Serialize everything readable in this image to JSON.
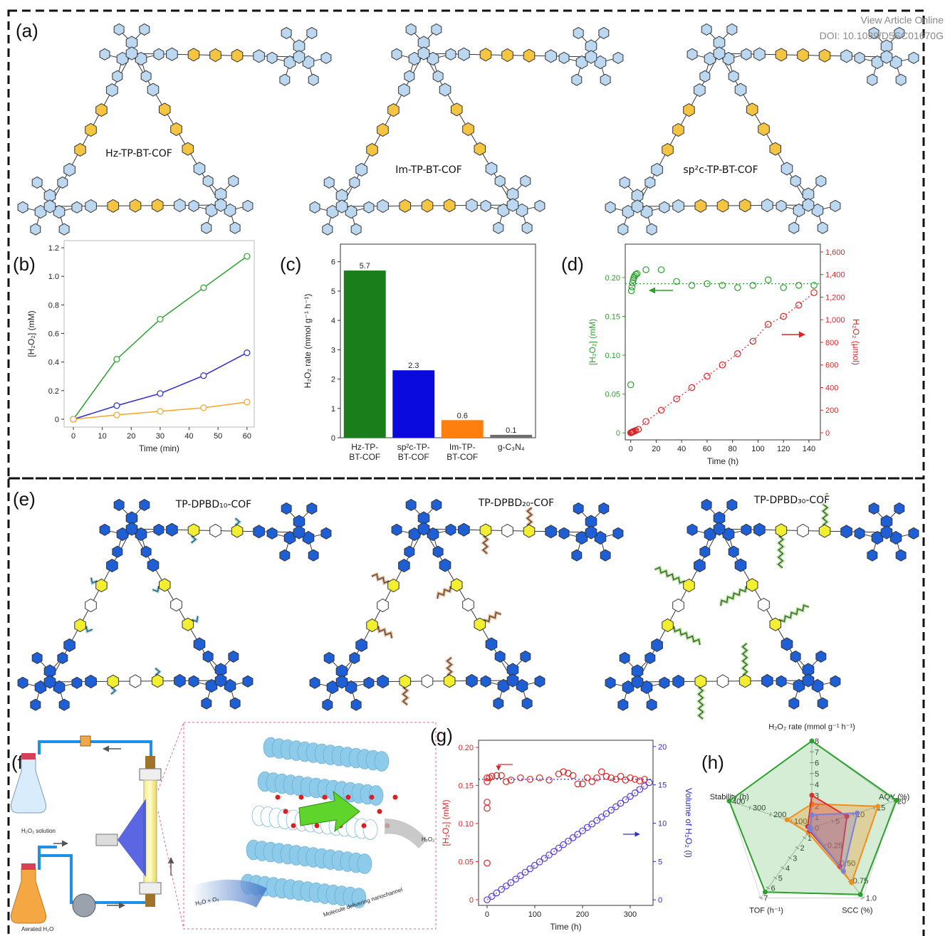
{
  "header": {
    "view": "View Article Online",
    "doi": "DOI: 10.1039/D5SC01670G"
  },
  "panels": {
    "a": "(a)",
    "e": "(e)",
    "f": "(f)"
  },
  "structures": {
    "a": [
      "Hz-TP-BT-COF",
      "Im-TP-BT-COF",
      "sp²c-TP-BT-COF"
    ],
    "e": [
      "TP-DPBD₁₀-COF",
      "TP-DPBD₂₀-COF",
      "TP-DPBD₃₀-COF"
    ]
  },
  "flow_diagram": {
    "solution": "H₂O₂ solution",
    "aerated": "Aerated H₂O",
    "input": "H₂O + O₂",
    "channel": "Molecule delivering nanochannel",
    "output": "H₂O₂"
  },
  "chart_data": [
    {
      "type": "line",
      "label": "(b)",
      "xlabel": "Time (min)",
      "ylabel": "[H₂O₂] (mM)",
      "x": [
        0,
        15,
        30,
        45,
        60
      ],
      "series": [
        {
          "color": "#2ca02c",
          "values": [
            0,
            0.42,
            0.7,
            0.92,
            1.14
          ]
        },
        {
          "color": "#2b2bd0",
          "values": [
            0,
            0.095,
            0.18,
            0.305,
            0.465
          ]
        },
        {
          "color": "#f5a623",
          "values": [
            0,
            0.03,
            0.055,
            0.08,
            0.12
          ]
        }
      ],
      "xlim": [
        -3.2,
        62.5
      ],
      "xticks": [
        0,
        10,
        20,
        30,
        40,
        50,
        60
      ],
      "ylim": [
        -0.055,
        1.25
      ],
      "yticks": [
        0,
        0.2,
        0.4,
        0.6,
        0.8,
        {
          "value": 1,
          "label": "1.0"
        },
        1.2
      ]
    },
    {
      "type": "bar",
      "label": "(c)",
      "ylabel": "H₂O₂ rate (mmol g⁻¹ h⁻¹)",
      "categories": [
        "Hz-TP-BT-COF",
        "sp²c-TP-BT-COF",
        "Im-TP-BT-COF",
        "g-C₃N₄"
      ],
      "values": [
        5.7,
        2.3,
        0.6,
        0.1
      ],
      "colors": [
        "#1a7f1a",
        "#0a0adf",
        "#ff7f0e",
        "#6e6e6e"
      ],
      "ylim": [
        0,
        6.6
      ],
      "yticks": [
        0,
        1,
        2,
        3,
        4,
        5,
        6
      ]
    },
    {
      "type": "scatter",
      "label": "(d)",
      "xlabel": "Time (h)",
      "ylabel": "[H₂O₂] (mM)",
      "y2label": "H₂O₂ (µmol)",
      "ycolor": "#2ca02c",
      "y2color": "#d62728",
      "series": [
        {
          "color": "#2ca02c",
          "connect": false,
          "x": [
            0,
            0.5,
            1,
            1.5,
            2,
            2.5,
            3,
            4,
            5,
            12,
            24,
            36,
            48,
            60,
            72,
            84,
            96,
            108,
            120,
            132,
            144
          ],
          "values": [
            0.062,
            0.183,
            0.188,
            0.193,
            0.197,
            0.2,
            0.202,
            0.204,
            0.205,
            0.21,
            0.21,
            0.195,
            0.19,
            0.192,
            0.19,
            0.187,
            0.19,
            0.197,
            0.187,
            0.19,
            0.19
          ]
        },
        {
          "color": "#d62728",
          "axis": "y2",
          "connect": true,
          "x": [
            0,
            0.5,
            1,
            1.5,
            2,
            3,
            4,
            6,
            12,
            24,
            36,
            48,
            60,
            72,
            84,
            96,
            108,
            120,
            132,
            144
          ],
          "values": [
            0,
            2,
            5,
            8,
            10,
            15,
            20,
            30,
            100,
            200,
            300,
            400,
            500,
            600,
            700,
            810,
            960,
            1030,
            1130,
            1240
          ]
        }
      ],
      "reference_line": {
        "value": 0.192,
        "color": "#2ca02c"
      },
      "xlim": [
        -4.3,
        149
      ],
      "xticks": [
        0,
        20,
        40,
        60,
        80,
        100,
        120,
        140
      ],
      "ylim": [
        -0.009,
        0.243
      ],
      "yticks": [
        0,
        0.05,
        {
          "value": 0.1,
          "label": "0.10"
        },
        0.15,
        {
          "value": 0.2,
          "label": "0.20"
        }
      ],
      "y2lim": [
        -63,
        1669
      ],
      "y2ticks": [
        0,
        200,
        400,
        600,
        800,
        {
          "value": 1000,
          "label": "1,000"
        },
        {
          "value": 1200,
          "label": "1,200"
        },
        {
          "value": 1400,
          "label": "1,400"
        },
        {
          "value": 1600,
          "label": "1,600"
        }
      ]
    },
    {
      "type": "scatter",
      "label": "(g)",
      "xlabel": "Time (h)",
      "ylabel": "[H₂O₂] (mM)",
      "y2label": "Volume of H₂O₂ (l)",
      "ycolor": "#d62728",
      "y2color": "#2b2bd0",
      "series": [
        {
          "color": "#d62728",
          "connect": false,
          "x": [
            0,
            0,
            0,
            0,
            0,
            5,
            10,
            20,
            30,
            40,
            50,
            70,
            90,
            110,
            130,
            150,
            160,
            170,
            180,
            190,
            200,
            210,
            220,
            230,
            240,
            250,
            260,
            270,
            280,
            290,
            300,
            310,
            320,
            330
          ],
          "values": [
            0.048,
            0.12,
            0.128,
            0.155,
            0.16,
            0.16,
            0.162,
            0.163,
            0.163,
            0.155,
            0.157,
            0.16,
            0.158,
            0.16,
            0.157,
            0.165,
            0.168,
            0.166,
            0.163,
            0.152,
            0.152,
            0.16,
            0.155,
            0.16,
            0.168,
            0.162,
            0.16,
            0.158,
            0.162,
            0.157,
            0.16,
            0.158,
            0.156,
            0.158
          ]
        },
        {
          "color": "#5a3ad6",
          "axis": "y2",
          "connect": true,
          "x": [
            0,
            10,
            20,
            30,
            40,
            50,
            60,
            70,
            80,
            90,
            100,
            110,
            120,
            130,
            140,
            150,
            160,
            170,
            180,
            190,
            200,
            210,
            220,
            230,
            240,
            250,
            260,
            270,
            280,
            290,
            300,
            310,
            320,
            330,
            340
          ],
          "values": [
            0,
            0.45,
            0.9,
            1.35,
            1.8,
            2.25,
            2.7,
            3.15,
            3.6,
            4.05,
            4.5,
            4.95,
            5.4,
            5.85,
            6.3,
            6.75,
            7.2,
            7.65,
            8.1,
            8.55,
            9,
            9.45,
            9.9,
            10.35,
            10.8,
            11.25,
            11.7,
            12.15,
            12.6,
            13.05,
            13.5,
            13.95,
            14.4,
            14.85,
            15.3
          ]
        }
      ],
      "reference_line": {
        "value": 0.158,
        "color": "#2b2bd0"
      },
      "xlim": [
        -17.9,
        347.8
      ],
      "xticks": [
        0,
        100,
        200,
        300
      ],
      "ylim": [
        -0.0075,
        0.2093
      ],
      "yticks": [
        0,
        0.05,
        {
          "value": 0.1,
          "label": "0.10"
        },
        0.15,
        {
          "value": 0.2,
          "label": "0.20"
        }
      ],
      "y2lim": [
        -0.73,
        20.82
      ],
      "y2ticks": [
        0,
        5,
        10,
        15,
        20
      ]
    },
    {
      "type": "radar",
      "label": "(h)",
      "axes": [
        {
          "label": "H₂O₂ rate (mmol g⁻¹ h⁻¹)",
          "lim": [
            0,
            8
          ],
          "ticks": [
            0,
            1,
            2,
            3,
            4,
            5,
            6,
            7,
            8
          ]
        },
        {
          "label": "AQY (%)",
          "lim": [
            0,
            20
          ],
          "ticks": [
            5,
            10,
            15,
            20
          ]
        },
        {
          "label": "SCC (%)",
          "lim": [
            0,
            1
          ],
          "ticks": [
            0.25,
            {
              "value": 0.5,
              "label": "0.50"
            },
            0.75,
            {
              "value": 1,
              "label": "1.0"
            }
          ]
        },
        {
          "label": "TOF (h⁻¹)",
          "lim": [
            0,
            7
          ],
          "ticks": [
            1,
            2,
            3,
            4,
            5,
            6,
            7
          ]
        },
        {
          "label": "Stability (h)",
          "lim": [
            0,
            400
          ],
          "ticks": [
            100,
            200,
            300,
            400
          ]
        }
      ],
      "series": [
        {
          "color": "#2ca02c",
          "values": [
            8,
            20.5,
            0.95,
            6.4,
            400
          ]
        },
        {
          "color": "#f28e1c",
          "values": [
            2.2,
            16,
            0.78,
            0.5,
            120
          ]
        },
        {
          "color": "#e0302a",
          "values": [
            3,
            8.5,
            0.55,
            0.3,
            20
          ]
        },
        {
          "color": "#7b7fd8",
          "values": [
            1.2,
            11,
            0.62,
            0.2,
            10
          ]
        }
      ]
    }
  ]
}
